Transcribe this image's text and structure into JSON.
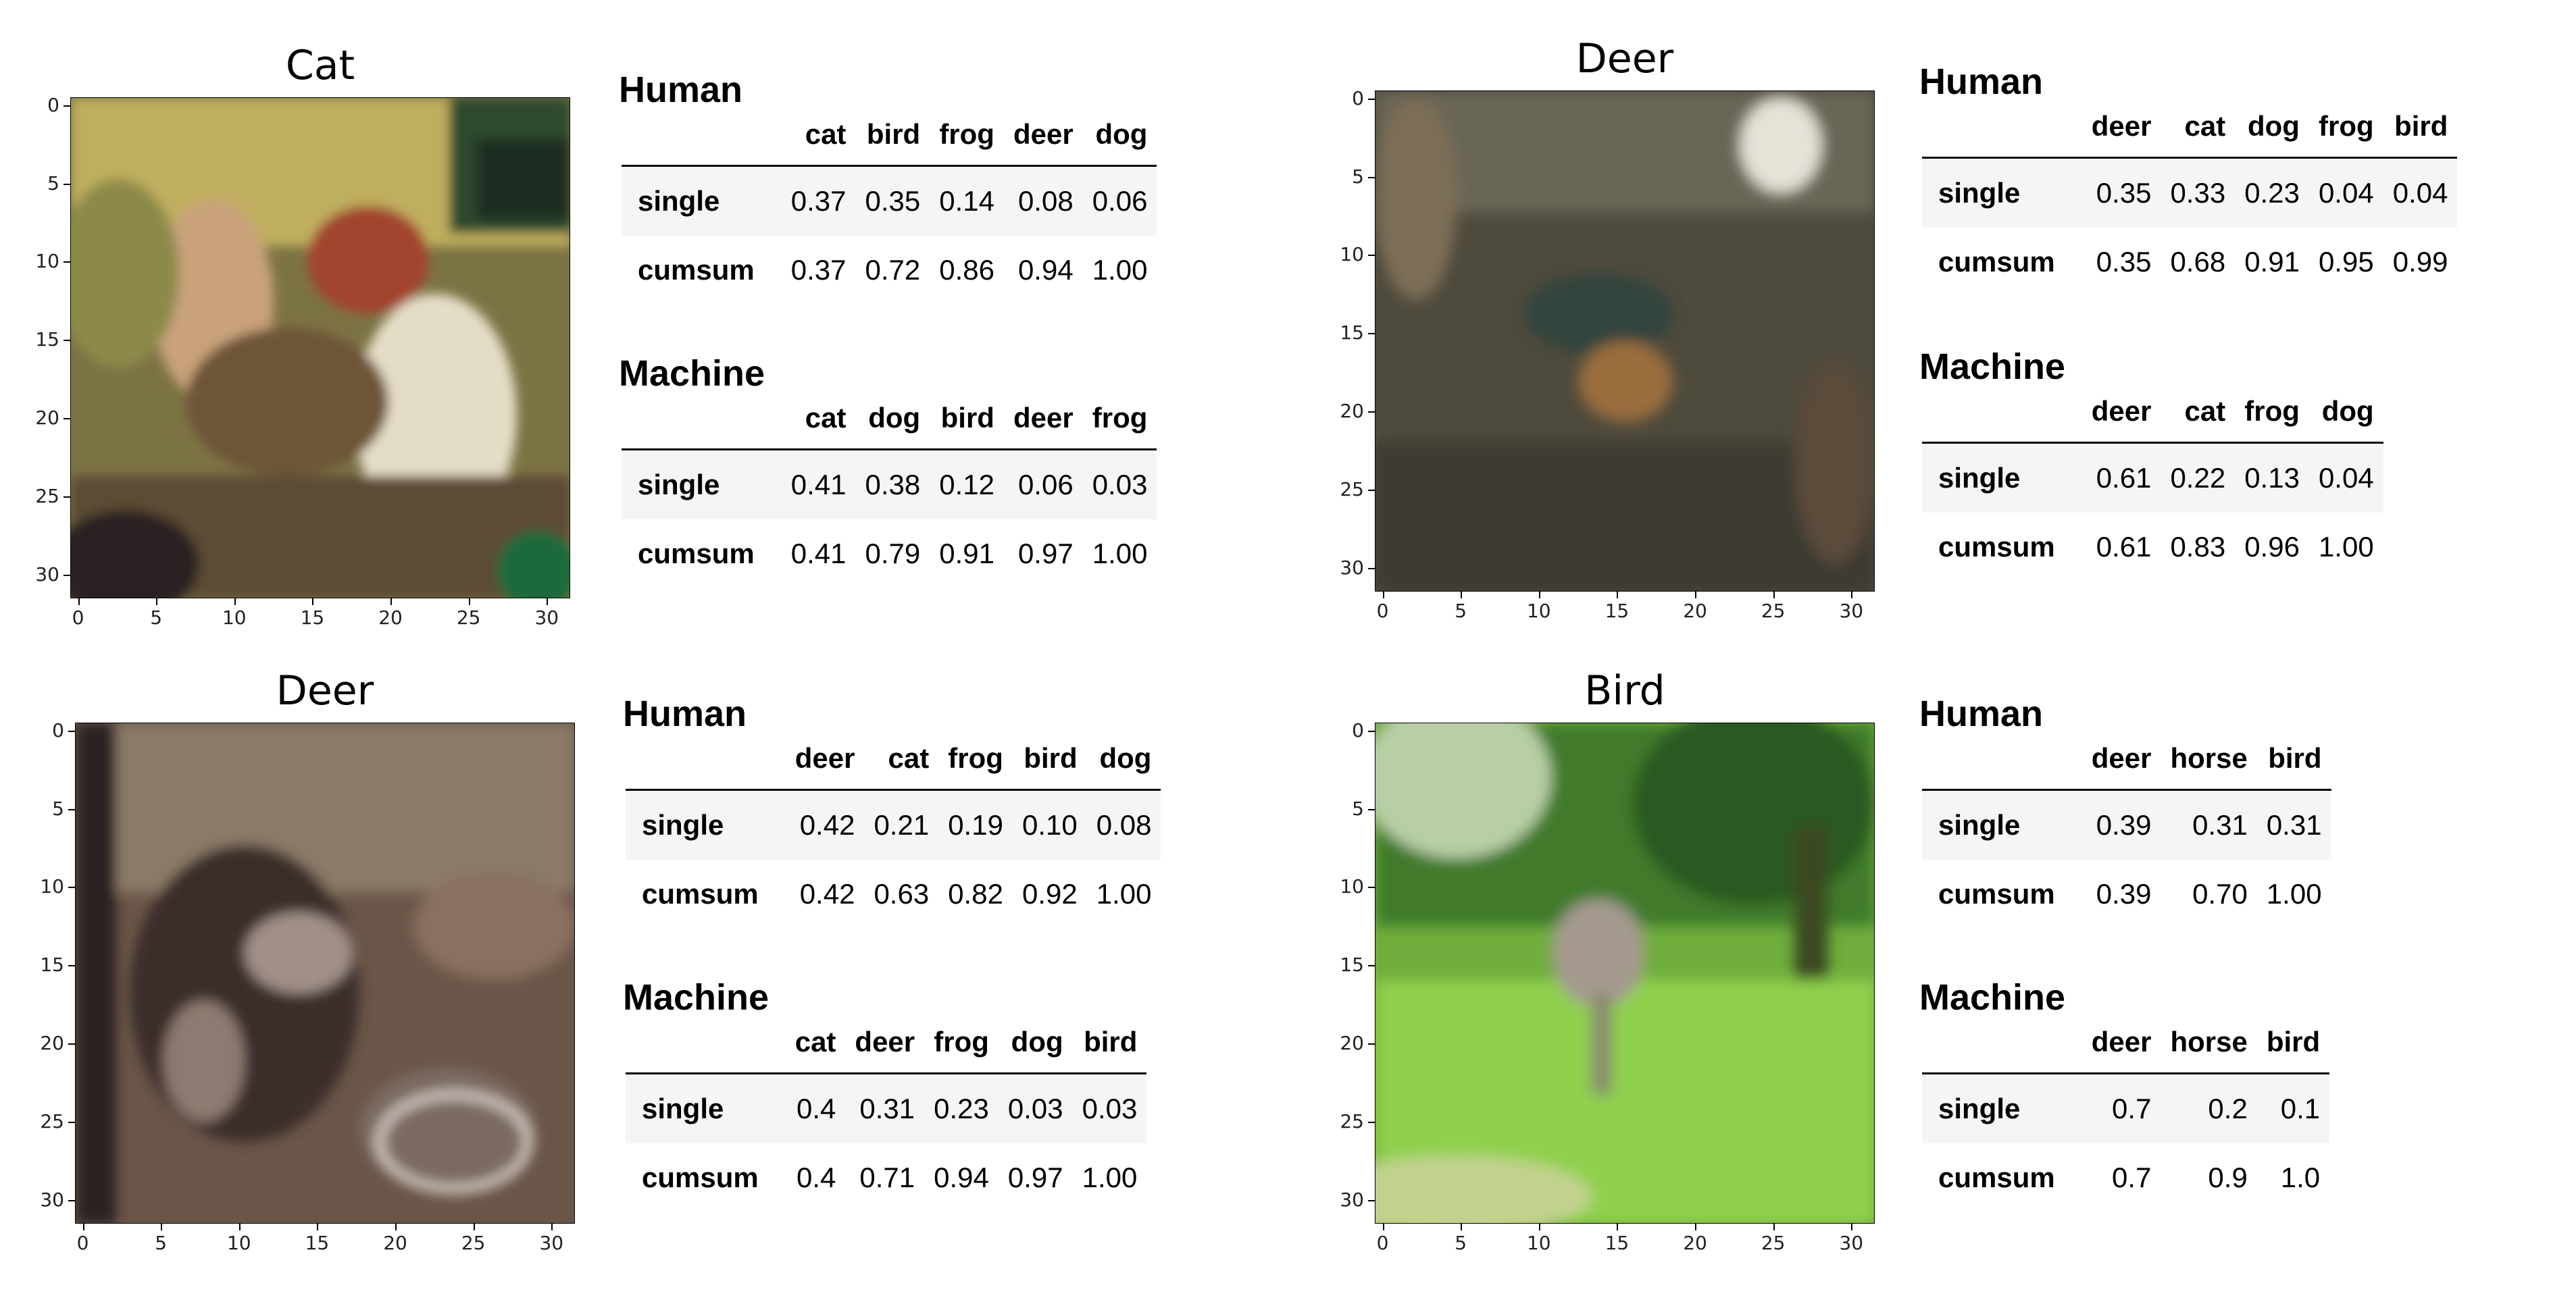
{
  "panels": [
    {
      "title": "Cat",
      "human": {
        "label": "Human",
        "columns": [
          "cat",
          "bird",
          "frog",
          "deer",
          "dog"
        ],
        "rows": [
          {
            "name": "single",
            "values": [
              "0.37",
              "0.35",
              "0.14",
              "0.08",
              "0.06"
            ]
          },
          {
            "name": "cumsum",
            "values": [
              "0.37",
              "0.72",
              "0.86",
              "0.94",
              "1.00"
            ]
          }
        ]
      },
      "machine": {
        "label": "Machine",
        "columns": [
          "cat",
          "dog",
          "bird",
          "deer",
          "frog"
        ],
        "rows": [
          {
            "name": "single",
            "values": [
              "0.41",
              "0.38",
              "0.12",
              "0.06",
              "0.03"
            ]
          },
          {
            "name": "cumsum",
            "values": [
              "0.41",
              "0.79",
              "0.91",
              "0.97",
              "1.00"
            ]
          }
        ]
      }
    },
    {
      "title": "Deer",
      "human": {
        "label": "Human",
        "columns": [
          "deer",
          "cat",
          "dog",
          "frog",
          "bird"
        ],
        "rows": [
          {
            "name": "single",
            "values": [
              "0.35",
              "0.33",
              "0.23",
              "0.04",
              "0.04"
            ]
          },
          {
            "name": "cumsum",
            "values": [
              "0.35",
              "0.68",
              "0.91",
              "0.95",
              "0.99"
            ]
          }
        ]
      },
      "machine": {
        "label": "Machine",
        "columns": [
          "deer",
          "cat",
          "frog",
          "dog"
        ],
        "rows": [
          {
            "name": "single",
            "values": [
              "0.61",
              "0.22",
              "0.13",
              "0.04"
            ]
          },
          {
            "name": "cumsum",
            "values": [
              "0.61",
              "0.83",
              "0.96",
              "1.00"
            ]
          }
        ]
      }
    },
    {
      "title": "Deer",
      "human": {
        "label": "Human",
        "columns": [
          "deer",
          "cat",
          "frog",
          "bird",
          "dog"
        ],
        "rows": [
          {
            "name": "single",
            "values": [
              "0.42",
              "0.21",
              "0.19",
              "0.10",
              "0.08"
            ]
          },
          {
            "name": "cumsum",
            "values": [
              "0.42",
              "0.63",
              "0.82",
              "0.92",
              "1.00"
            ]
          }
        ]
      },
      "machine": {
        "label": "Machine",
        "columns": [
          "cat",
          "deer",
          "frog",
          "dog",
          "bird"
        ],
        "rows": [
          {
            "name": "single",
            "values": [
              "0.4",
              "0.31",
              "0.23",
              "0.03",
              "0.03"
            ]
          },
          {
            "name": "cumsum",
            "values": [
              "0.4",
              "0.71",
              "0.94",
              "0.97",
              "1.00"
            ]
          }
        ]
      }
    },
    {
      "title": "Bird",
      "human": {
        "label": "Human",
        "columns": [
          "deer",
          "horse",
          "bird"
        ],
        "rows": [
          {
            "name": "single",
            "values": [
              "0.39",
              "0.31",
              "0.31"
            ]
          },
          {
            "name": "cumsum",
            "values": [
              "0.39",
              "0.70",
              "1.00"
            ]
          }
        ]
      },
      "machine": {
        "label": "Machine",
        "columns": [
          "deer",
          "horse",
          "bird"
        ],
        "rows": [
          {
            "name": "single",
            "values": [
              "0.7",
              "0.2",
              "0.1"
            ]
          },
          {
            "name": "cumsum",
            "values": [
              "0.7",
              "0.9",
              "1.0"
            ]
          }
        ]
      }
    }
  ],
  "axis_ticks": [
    "0",
    "5",
    "10",
    "15",
    "20",
    "25",
    "30"
  ]
}
